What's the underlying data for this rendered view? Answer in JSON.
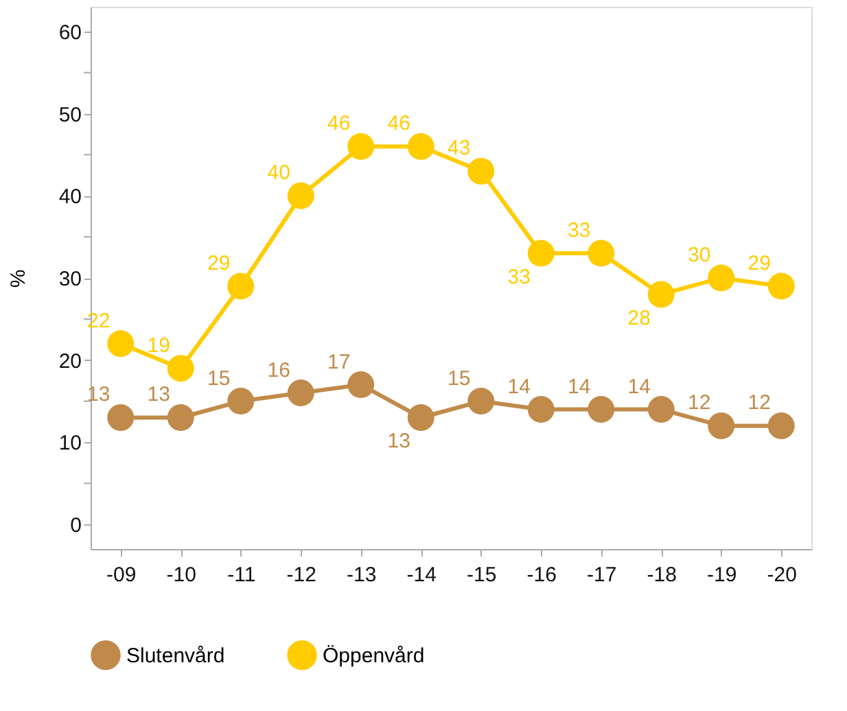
{
  "chart_data": {
    "type": "line",
    "ylabel": "%",
    "categories": [
      "-09",
      "-10",
      "-11",
      "-12",
      "-13",
      "-14",
      "-15",
      "-16",
      "-17",
      "-18",
      "-19",
      "-20"
    ],
    "series": [
      {
        "name": "Slutenvård",
        "color": "#c08a4a",
        "values": [
          13,
          13,
          15,
          16,
          17,
          13,
          15,
          14,
          14,
          14,
          12,
          12
        ]
      },
      {
        "name": "Öppenvård",
        "color": "#ffcc00",
        "values": [
          22,
          19,
          29,
          40,
          46,
          46,
          43,
          33,
          33,
          28,
          30,
          29
        ]
      }
    ],
    "ylim": [
      -3,
      63
    ],
    "yticks": [
      0,
      {
        "value": 5,
        "label": null
      },
      10,
      {
        "value": 15,
        "label": null
      },
      20,
      {
        "value": 25,
        "label": null
      },
      30,
      {
        "value": 35,
        "label": null
      },
      40,
      {
        "value": 45,
        "label": null
      },
      50,
      {
        "value": 55,
        "label": null
      },
      60
    ],
    "data_labels": true,
    "grid": false,
    "legend": "bottom",
    "marker": "circle",
    "line_style": "solid"
  }
}
